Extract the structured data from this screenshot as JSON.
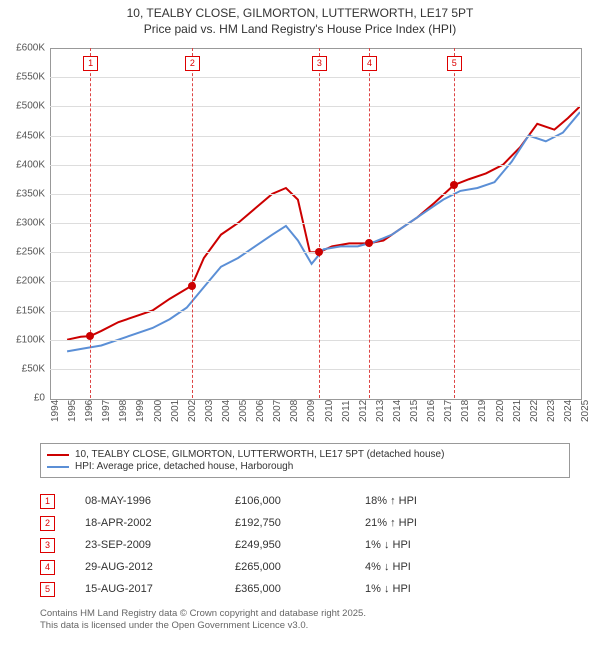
{
  "title": {
    "line1": "10, TEALBY CLOSE, GILMORTON, LUTTERWORTH, LE17 5PT",
    "line2": "Price paid vs. HM Land Registry's House Price Index (HPI)"
  },
  "chart": {
    "type": "line",
    "background_color": "#ffffff",
    "grid_color": "#dddddd",
    "border_color": "#999999",
    "ylim": [
      0,
      600000
    ],
    "ytick_step": 50000,
    "ytick_prefix": "£",
    "ytick_suffix": "K",
    "xlim": [
      1994,
      2025
    ],
    "xticks": [
      1994,
      1995,
      1996,
      1997,
      1998,
      1999,
      2000,
      2001,
      2002,
      2003,
      2004,
      2005,
      2006,
      2007,
      2008,
      2009,
      2010,
      2011,
      2012,
      2013,
      2014,
      2015,
      2016,
      2017,
      2018,
      2019,
      2020,
      2021,
      2022,
      2023,
      2024,
      2025
    ],
    "line_width": 2,
    "axis_fontsize": 10,
    "vline_color": "#dd4444",
    "vline_dash": "4,3",
    "series": [
      {
        "name": "price_paid",
        "label": "10, TEALBY CLOSE, GILMORTON, LUTTERWORTH, LE17 5PT (detached house)",
        "color": "#cc0000",
        "marker_color": "#cc0000",
        "points": [
          [
            1995.0,
            100000
          ],
          [
            1995.8,
            105000
          ],
          [
            1996.35,
            106000
          ],
          [
            1997.0,
            115000
          ],
          [
            1998.0,
            130000
          ],
          [
            1999.0,
            140000
          ],
          [
            2000.0,
            150000
          ],
          [
            2001.0,
            170000
          ],
          [
            2002.3,
            192750
          ],
          [
            2003.0,
            240000
          ],
          [
            2004.0,
            280000
          ],
          [
            2005.0,
            300000
          ],
          [
            2006.0,
            325000
          ],
          [
            2007.0,
            350000
          ],
          [
            2007.8,
            360000
          ],
          [
            2008.5,
            340000
          ],
          [
            2009.2,
            250000
          ],
          [
            2009.73,
            249950
          ],
          [
            2010.5,
            260000
          ],
          [
            2011.5,
            265000
          ],
          [
            2012.66,
            265000
          ],
          [
            2013.5,
            270000
          ],
          [
            2014.5,
            290000
          ],
          [
            2015.5,
            310000
          ],
          [
            2016.5,
            335000
          ],
          [
            2017.62,
            365000
          ],
          [
            2018.5,
            375000
          ],
          [
            2019.5,
            385000
          ],
          [
            2020.5,
            400000
          ],
          [
            2021.5,
            430000
          ],
          [
            2022.5,
            470000
          ],
          [
            2023.5,
            460000
          ],
          [
            2024.3,
            480000
          ],
          [
            2025.0,
            500000
          ]
        ]
      },
      {
        "name": "hpi",
        "label": "HPI: Average price, detached house, Harborough",
        "color": "#5b8fd6",
        "points": [
          [
            1995.0,
            80000
          ],
          [
            1996.0,
            85000
          ],
          [
            1997.0,
            90000
          ],
          [
            1998.0,
            100000
          ],
          [
            1999.0,
            110000
          ],
          [
            2000.0,
            120000
          ],
          [
            2001.0,
            135000
          ],
          [
            2002.0,
            155000
          ],
          [
            2003.0,
            190000
          ],
          [
            2004.0,
            225000
          ],
          [
            2005.0,
            240000
          ],
          [
            2006.0,
            260000
          ],
          [
            2007.0,
            280000
          ],
          [
            2007.8,
            295000
          ],
          [
            2008.5,
            270000
          ],
          [
            2009.3,
            230000
          ],
          [
            2010.0,
            255000
          ],
          [
            2011.0,
            260000
          ],
          [
            2012.0,
            260000
          ],
          [
            2013.0,
            268000
          ],
          [
            2014.0,
            280000
          ],
          [
            2015.0,
            300000
          ],
          [
            2016.0,
            320000
          ],
          [
            2017.0,
            340000
          ],
          [
            2018.0,
            355000
          ],
          [
            2019.0,
            360000
          ],
          [
            2020.0,
            370000
          ],
          [
            2021.0,
            405000
          ],
          [
            2022.0,
            450000
          ],
          [
            2023.0,
            440000
          ],
          [
            2024.0,
            455000
          ],
          [
            2025.0,
            490000
          ]
        ]
      }
    ],
    "transactions": [
      {
        "n": "1",
        "x": 1996.35,
        "date": "08-MAY-1996",
        "price": "£106,000",
        "hpi": "18% ↑ HPI"
      },
      {
        "n": "2",
        "x": 2002.3,
        "date": "18-APR-2002",
        "price": "£192,750",
        "hpi": "21% ↑ HPI"
      },
      {
        "n": "3",
        "x": 2009.73,
        "date": "23-SEP-2009",
        "price": "£249,950",
        "hpi": "1% ↓ HPI"
      },
      {
        "n": "4",
        "x": 2012.66,
        "date": "29-AUG-2012",
        "price": "£265,000",
        "hpi": "4% ↓ HPI"
      },
      {
        "n": "5",
        "x": 2017.62,
        "date": "15-AUG-2017",
        "price": "£365,000",
        "hpi": "1% ↓ HPI"
      }
    ]
  },
  "footer": {
    "line1": "Contains HM Land Registry data © Crown copyright and database right 2025.",
    "line2": "This data is licensed under the Open Government Licence v3.0."
  }
}
